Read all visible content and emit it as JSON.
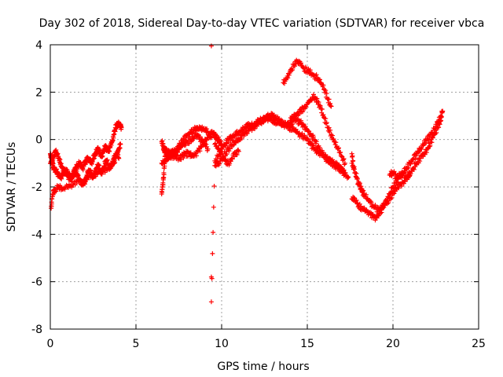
{
  "chart_data": {
    "type": "scatter",
    "title": "Day 302 of 2018, Sidereal Day-to-day VTEC variation (SDTVAR) for receiver vbca",
    "xlabel": "GPS time / hours",
    "ylabel": "SDTVAR / TECUs",
    "xlim": [
      0,
      25
    ],
    "ylim": [
      -8,
      4
    ],
    "xticks": [
      "0",
      "5",
      "10",
      "15",
      "20",
      "25"
    ],
    "yticks": [
      "4",
      "2",
      "0",
      "-2",
      "-4",
      "-6",
      "-8"
    ],
    "grid": true,
    "marker": "+",
    "color": "#ff0000",
    "series": [
      {
        "name": "SDTVAR",
        "x": [
          0.0,
          0.05,
          0.1,
          0.15,
          0.2,
          0.3,
          0.4,
          0.5,
          0.6,
          0.7,
          0.8,
          0.9,
          1.0,
          1.1,
          1.2,
          1.3,
          1.4,
          1.5,
          1.6,
          1.7,
          1.8,
          1.9,
          2.0,
          2.1,
          2.2,
          2.3,
          2.4,
          2.5,
          2.6,
          2.7,
          2.8,
          2.9,
          3.0,
          3.1,
          3.2,
          3.3,
          3.4,
          3.5,
          3.6,
          3.7,
          3.8,
          3.9,
          4.0,
          4.1,
          4.15,
          0.0,
          0.1,
          0.2,
          0.3,
          0.4,
          0.5,
          0.6,
          0.7,
          0.8,
          0.9,
          1.0,
          1.1,
          1.2,
          1.3,
          1.4,
          1.5,
          1.6,
          1.7,
          1.8,
          1.9,
          2.0,
          2.1,
          2.2,
          2.3,
          2.4,
          2.5,
          2.6,
          2.7,
          2.8,
          2.9,
          3.0,
          3.1,
          3.2,
          3.3,
          3.4,
          3.5,
          3.6,
          3.7,
          3.8,
          3.9,
          4.0,
          0.05,
          0.1,
          0.2,
          0.3,
          0.5,
          0.7,
          1.0,
          1.3,
          1.6,
          1.9,
          2.2,
          2.5,
          2.8,
          3.1,
          3.4,
          3.7,
          3.8,
          3.9,
          4.0,
          4.1,
          6.5,
          6.6,
          6.7,
          6.8,
          6.9,
          7.0,
          7.2,
          7.4,
          7.6,
          7.8,
          8.0,
          8.2,
          8.4,
          8.6,
          8.8,
          9.0,
          9.2,
          9.4,
          6.5,
          6.7,
          6.9,
          7.1,
          7.3,
          7.5,
          7.7,
          7.9,
          8.1,
          8.3,
          8.5,
          8.7,
          8.9,
          9.1,
          9.3,
          9.5,
          9.6,
          9.7,
          9.8,
          9.9,
          10.0,
          6.6,
          6.8,
          7.0,
          7.2,
          7.4,
          7.6,
          7.8,
          8.0,
          8.2,
          8.4,
          8.6,
          8.8,
          9.0,
          9.2,
          6.5,
          6.55,
          6.6,
          6.65,
          6.7,
          9.4,
          9.4,
          9.4,
          9.6,
          9.8,
          10.0,
          10.2,
          10.4,
          10.6,
          10.8,
          11.0,
          11.2,
          11.4,
          11.6,
          11.8,
          12.0,
          12.2,
          12.4,
          12.6,
          12.8,
          13.0,
          13.2,
          13.4,
          13.6,
          13.8,
          14.0,
          14.2,
          14.4,
          14.6,
          14.8,
          15.0,
          15.2,
          15.4,
          15.6,
          15.8,
          16.0,
          16.2,
          16.4,
          16.6,
          16.8,
          17.0,
          17.2,
          17.4,
          9.6,
          9.8,
          10.0,
          10.2,
          10.4,
          10.6,
          10.8,
          11.0,
          11.2,
          11.4,
          11.6,
          11.8,
          12.0,
          12.2,
          12.4,
          12.6,
          12.8,
          13.0,
          13.2,
          13.4,
          13.6,
          13.8,
          14.0,
          14.2,
          14.4,
          14.6,
          14.8,
          15.0,
          15.2,
          15.4,
          15.6,
          15.8,
          16.0,
          16.2,
          16.4,
          16.6,
          16.8,
          17.0,
          17.2,
          13.6,
          13.8,
          14.0,
          14.2,
          14.4,
          14.6,
          14.8,
          15.0,
          15.2,
          15.4,
          15.6,
          15.8,
          16.0,
          16.2,
          16.4,
          14.0,
          14.2,
          14.4,
          14.6,
          14.8,
          15.0,
          15.2,
          15.4,
          15.6,
          15.8,
          16.0,
          16.2,
          16.4,
          16.6,
          16.8,
          17.0,
          17.2,
          9.6,
          9.8,
          10.0,
          10.2,
          10.4,
          10.6,
          10.8,
          11.0,
          17.6,
          17.8,
          18.0,
          18.2,
          18.4,
          18.6,
          18.8,
          19.0,
          19.2,
          19.4,
          19.6,
          19.8,
          20.0,
          20.2,
          20.4,
          20.6,
          20.8,
          21.0,
          21.2,
          21.4,
          21.6,
          21.8,
          22.0,
          22.2,
          22.4,
          22.6,
          22.8,
          22.9,
          17.6,
          17.8,
          18.0,
          18.2,
          18.4,
          18.6,
          18.8,
          19.0,
          19.2,
          19.4,
          19.6,
          19.8,
          20.0,
          20.2,
          20.4,
          20.6,
          20.8,
          21.0,
          21.2,
          21.4,
          21.6,
          21.8,
          22.0,
          22.2,
          22.4,
          22.6,
          22.8,
          19.8,
          20.0,
          20.2,
          20.4,
          20.6,
          20.8,
          21.0,
          17.6,
          17.7,
          18.0,
          18.3
        ],
        "y": [
          -0.6,
          -0.7,
          -0.9,
          -1.1,
          -1.2,
          -1.3,
          -1.4,
          -1.5,
          -1.6,
          -1.5,
          -1.4,
          -1.3,
          -1.4,
          -1.5,
          -1.6,
          -1.5,
          -1.3,
          -1.2,
          -1.1,
          -1.0,
          -1.1,
          -1.2,
          -1.0,
          -0.9,
          -0.8,
          -0.9,
          -1.0,
          -0.8,
          -0.7,
          -0.5,
          -0.4,
          -0.6,
          -0.7,
          -0.5,
          -0.3,
          -0.4,
          -0.5,
          -0.3,
          -0.1,
          0.2,
          0.5,
          0.6,
          0.7,
          0.6,
          0.5,
          -1.0,
          -0.9,
          -0.7,
          -0.5,
          -0.6,
          -0.8,
          -1.0,
          -1.2,
          -1.3,
          -1.4,
          -1.5,
          -1.6,
          -1.7,
          -1.6,
          -1.5,
          -1.4,
          -1.5,
          -1.7,
          -1.8,
          -1.9,
          -1.8,
          -1.6,
          -1.4,
          -1.3,
          -1.5,
          -1.6,
          -1.4,
          -1.2,
          -1.1,
          -1.3,
          -1.4,
          -1.2,
          -1.0,
          -0.9,
          -1.1,
          -1.2,
          -1.0,
          -0.8,
          -0.7,
          -0.6,
          -0.8,
          -2.9,
          -2.5,
          -2.2,
          -2.1,
          -2.0,
          -2.1,
          -2.0,
          -1.9,
          -1.7,
          -1.8,
          -1.6,
          -1.5,
          -1.4,
          -1.3,
          -1.2,
          -1.0,
          -0.8,
          -0.6,
          -0.4,
          -0.2,
          -0.1,
          -0.3,
          -0.5,
          -0.6,
          -0.7,
          -0.6,
          -0.5,
          -0.4,
          -0.2,
          0.0,
          0.2,
          0.3,
          0.4,
          0.5,
          0.5,
          0.4,
          0.3,
          0.1,
          -1.0,
          -0.9,
          -0.8,
          -0.7,
          -0.7,
          -0.8,
          -0.7,
          -0.6,
          -0.6,
          -0.7,
          -0.6,
          -0.4,
          -0.2,
          0.0,
          0.2,
          0.3,
          0.2,
          0.1,
          0.0,
          -0.1,
          -0.2,
          -0.4,
          -0.5,
          -0.6,
          -0.6,
          -0.5,
          -0.3,
          -0.2,
          -0.1,
          0.0,
          0.1,
          0.2,
          0.0,
          -0.2,
          -0.4,
          -2.3,
          -2.0,
          -1.7,
          -1.2,
          -0.7,
          3.95,
          -5.8,
          -6.85,
          -0.9,
          -0.7,
          -0.4,
          -0.2,
          0.0,
          0.1,
          0.2,
          0.3,
          0.4,
          0.5,
          0.6,
          0.6,
          0.7,
          0.8,
          0.8,
          0.9,
          0.9,
          0.8,
          0.7,
          0.7,
          0.6,
          0.6,
          0.7,
          0.8,
          0.8,
          0.7,
          0.6,
          0.4,
          0.2,
          0.0,
          -0.3,
          -0.5,
          -0.7,
          -0.9,
          -1.0,
          -1.1,
          -1.2,
          -1.3,
          -1.5,
          -1.6,
          -1.1,
          -1.0,
          -0.8,
          -0.6,
          -0.4,
          -0.2,
          -0.1,
          0.0,
          0.2,
          0.3,
          0.4,
          0.5,
          0.6,
          0.7,
          0.8,
          0.9,
          1.0,
          1.0,
          0.9,
          0.8,
          0.7,
          0.6,
          0.5,
          0.4,
          0.3,
          0.2,
          0.1,
          0.0,
          -0.2,
          -0.4,
          -0.5,
          -0.6,
          -0.7,
          -0.8,
          -0.9,
          -1.0,
          -1.1,
          -1.2,
          -1.4,
          2.4,
          2.6,
          2.9,
          3.1,
          3.3,
          3.2,
          3.0,
          2.9,
          2.8,
          2.7,
          2.6,
          2.4,
          2.1,
          1.7,
          1.4,
          0.8,
          1.0,
          1.1,
          1.2,
          1.3,
          1.5,
          1.7,
          1.8,
          1.6,
          1.3,
          0.9,
          0.5,
          0.2,
          -0.1,
          -0.4,
          -0.7,
          -1.0,
          -0.2,
          -0.4,
          -0.6,
          -0.9,
          -1.0,
          -0.8,
          -0.6,
          -0.5,
          -1.0,
          -1.4,
          -1.8,
          -2.1,
          -2.4,
          -2.6,
          -2.8,
          -2.9,
          -3.0,
          -2.8,
          -2.6,
          -2.3,
          -2.0,
          -1.8,
          -1.6,
          -1.4,
          -1.2,
          -1.0,
          -0.8,
          -0.6,
          -0.4,
          -0.2,
          0.0,
          0.2,
          0.4,
          0.7,
          1.0,
          1.2,
          -2.5,
          -2.6,
          -2.8,
          -2.9,
          -3.0,
          -3.1,
          -3.2,
          -3.3,
          -3.1,
          -2.9,
          -2.7,
          -2.5,
          -2.3,
          -2.1,
          -1.9,
          -1.8,
          -1.6,
          -1.4,
          -1.2,
          -1.0,
          -0.8,
          -0.6,
          -0.4,
          -0.1,
          0.2,
          0.5,
          0.8,
          -1.5,
          -1.4,
          -1.6,
          -1.5,
          -1.4,
          -1.6,
          -1.5,
          -0.6,
          -1.2,
          -1.9,
          -2.4
        ]
      }
    ]
  }
}
